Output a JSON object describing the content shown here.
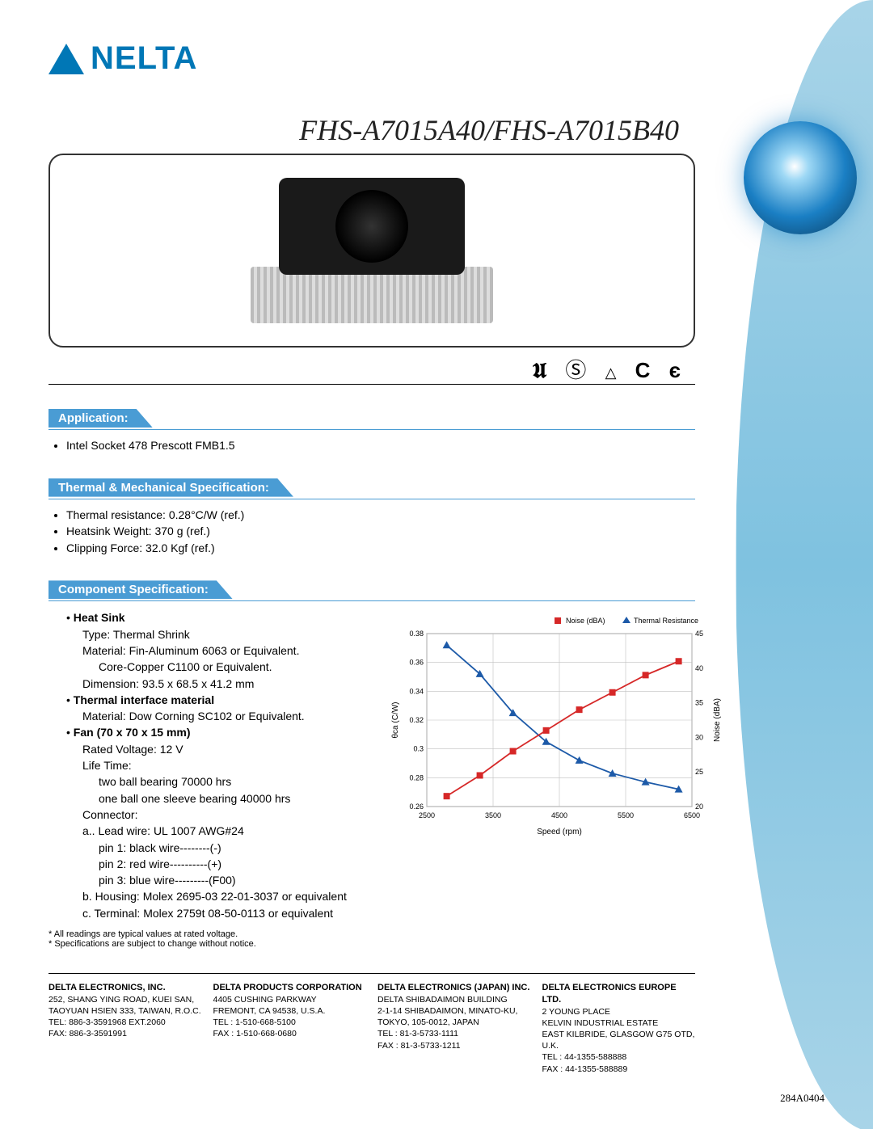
{
  "logo_text": "NELTA",
  "product_title": "FHS-A7015A40/FHS-A7015B40",
  "cert_glyphs": "Ⓤ Ⓢ △ ✓ ε",
  "sections": {
    "application": {
      "title": "Application:",
      "items": [
        "Intel Socket 478 Prescott FMB1.5"
      ]
    },
    "thermal": {
      "title": "Thermal & Mechanical Specification:",
      "items": [
        "Thermal resistance: 0.28°C/W (ref.)",
        "Heatsink Weight: 370 g (ref.)",
        "Clipping Force: 32.0 Kgf (ref.)"
      ]
    },
    "component": {
      "title": "Component Specification:",
      "heat_sink_label": "Heat Sink",
      "heat_sink_lines": [
        "Type: Thermal Shrink",
        "Material: Fin-Aluminum 6063 or Equivalent.",
        "Core-Copper C1100 or Equivalent.",
        "Dimension: 93.5 x 68.5 x 41.2 mm"
      ],
      "tim_label": "Thermal interface material",
      "tim_line": "Material: Dow Corning SC102 or Equivalent.",
      "fan_label": "Fan (70 x 70 x 15 mm)",
      "fan_lines1": [
        "Rated Voltage: 12 V",
        "Life Time:",
        "two ball bearing 70000 hrs",
        "one ball one sleeve bearing 40000 hrs",
        "Connector:"
      ],
      "connector_lines": [
        "a.. Lead wire: UL 1007 AWG#24",
        "pin 1: black wire--------(-)",
        "pin 2: red wire----------(+)",
        "pin 3: blue wire---------(F00)",
        "b. Housing: Molex 2695-03 22-01-3037 or equivalent",
        "c. Terminal: Molex 2759t 08-50-0113 or equivalent"
      ]
    }
  },
  "chart": {
    "legend": {
      "noise": "Noise (dBA)",
      "thermal": "Thermal Resistance"
    },
    "xlabel": "Speed (rpm)",
    "ylabel_left": "θca (C/W)",
    "ylabel_right": "Noise (dBA)",
    "xlim": [
      2500,
      6500
    ],
    "xticks": [
      2500,
      3500,
      4500,
      5500,
      6500
    ],
    "ylim_left": [
      0.26,
      0.38
    ],
    "yticks_left": [
      0.26,
      0.28,
      0.3,
      0.32,
      0.34,
      0.36,
      0.38
    ],
    "ylim_right": [
      20,
      45
    ],
    "yticks_right": [
      20,
      25,
      30,
      35,
      40,
      45
    ],
    "noise_color": "#d62828",
    "thermal_color": "#1d5aa8",
    "grid_color": "#bfbfbf",
    "background_color": "#ffffff",
    "marker_noise": "square",
    "marker_thermal": "triangle",
    "line_width": 1.8,
    "noise_data": [
      {
        "x": 2800,
        "y": 21.5
      },
      {
        "x": 3300,
        "y": 24.5
      },
      {
        "x": 3800,
        "y": 28.0
      },
      {
        "x": 4300,
        "y": 31.0
      },
      {
        "x": 4800,
        "y": 34.0
      },
      {
        "x": 5300,
        "y": 36.5
      },
      {
        "x": 5800,
        "y": 39.0
      },
      {
        "x": 6300,
        "y": 41.0
      }
    ],
    "thermal_data": [
      {
        "x": 2800,
        "y": 0.372
      },
      {
        "x": 3300,
        "y": 0.352
      },
      {
        "x": 3800,
        "y": 0.325
      },
      {
        "x": 4300,
        "y": 0.305
      },
      {
        "x": 4800,
        "y": 0.292
      },
      {
        "x": 5300,
        "y": 0.283
      },
      {
        "x": 5800,
        "y": 0.277
      },
      {
        "x": 6300,
        "y": 0.272
      }
    ]
  },
  "footnotes": [
    "* All readings are typical values at rated voltage.",
    "* Specifications are subject to change without notice."
  ],
  "footer": [
    {
      "name": "DELTA ELECTRONICS, INC.",
      "lines": [
        "252, SHANG YING ROAD, KUEI SAN,",
        "TAOYUAN HSIEN 333, TAIWAN, R.O.C.",
        "TEL: 886-3-3591968 EXT.2060",
        "FAX: 886-3-3591991"
      ]
    },
    {
      "name": "DELTA PRODUCTS CORPORATION",
      "lines": [
        "4405 CUSHING PARKWAY",
        "FREMONT, CA 94538, U.S.A.",
        "TEL : 1-510-668-5100",
        "FAX : 1-510-668-0680"
      ]
    },
    {
      "name": "DELTA ELECTRONICS (JAPAN) INC.",
      "lines": [
        "DELTA SHIBADAIMON BUILDING",
        "2-1-14 SHIBADAIMON, MINATO-KU,",
        "TOKYO, 105-0012, JAPAN",
        "TEL : 81-3-5733-1111",
        "FAX : 81-3-5733-1211"
      ]
    },
    {
      "name": "DELTA ELECTRONICS EUROPE LTD.",
      "lines": [
        "2 YOUNG PLACE",
        "KELVIN INDUSTRIAL ESTATE",
        "EAST KILBRIDE, GLASGOW G75 OTD, U.K.",
        "TEL : 44-1355-588888",
        "FAX : 44-1355-588889"
      ]
    }
  ],
  "doc_number": "284A0404"
}
